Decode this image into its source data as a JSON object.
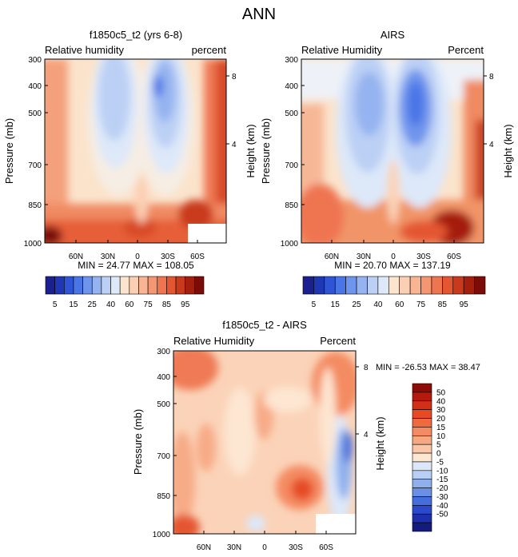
{
  "page_title": "ANN",
  "chart_data": [
    {
      "type": "heatmap",
      "title": "f1850c5_t2 (yrs 6-8)",
      "left_label": "Relative humidity",
      "right_label": "percent",
      "ylabel": "Pressure (mb)",
      "y2label": "Height (km)",
      "xticks": [
        "60N",
        "30N",
        "0",
        "30S",
        "60S"
      ],
      "yticks": [
        "300",
        "400",
        "500",
        "700",
        "850",
        "1000"
      ],
      "y2ticks": [
        "8",
        "4"
      ],
      "stats": "MIN =  24.77   MAX = 108.05",
      "colorbar": {
        "orientation": "horizontal",
        "labels": [
          "5",
          "15",
          "25",
          "40",
          "60",
          "75",
          "85",
          "95"
        ],
        "colors": [
          "#1b1f8f",
          "#2037b5",
          "#2f55d6",
          "#4a75e6",
          "#6f94ec",
          "#95b3f0",
          "#bcd0f5",
          "#dde8f9",
          "#fbe5cf",
          "#fbcfb3",
          "#f8b493",
          "#f49672",
          "#ef7551",
          "#e45631",
          "#c93a1c",
          "#a51f0f",
          "#7c0c07"
        ]
      },
      "zrange": [
        24.77,
        108.05
      ]
    },
    {
      "type": "heatmap",
      "title": "AIRS",
      "left_label": "Relative Humidity",
      "right_label": "Percent",
      "ylabel": "Pressure (mb)",
      "y2label": "Height (km)",
      "xticks": [
        "60N",
        "30N",
        "0",
        "30S",
        "60S"
      ],
      "yticks": [
        "300",
        "400",
        "500",
        "700",
        "850",
        "1000"
      ],
      "y2ticks": [
        "8",
        "4"
      ],
      "stats": "MIN =  20.70   MAX = 137.19",
      "colorbar": {
        "orientation": "horizontal",
        "labels": [
          "5",
          "15",
          "25",
          "40",
          "60",
          "75",
          "85",
          "95"
        ],
        "colors": [
          "#1b1f8f",
          "#2037b5",
          "#2f55d6",
          "#4a75e6",
          "#6f94ec",
          "#95b3f0",
          "#bcd0f5",
          "#dde8f9",
          "#fbe5cf",
          "#fbcfb3",
          "#f8b493",
          "#f49672",
          "#ef7551",
          "#e45631",
          "#c93a1c",
          "#a51f0f",
          "#7c0c07"
        ]
      },
      "zrange": [
        20.7,
        137.19
      ]
    },
    {
      "type": "heatmap",
      "title": "f1850c5_t2 - AIRS",
      "left_label": "Relative Humidity",
      "right_label": "Percent",
      "ylabel": "Pressure (mb)",
      "y2label": "Height (km)",
      "xticks": [
        "60N",
        "30N",
        "0",
        "30S",
        "60S"
      ],
      "yticks": [
        "300",
        "400",
        "500",
        "700",
        "850",
        "1000"
      ],
      "y2ticks": [
        "8",
        "4"
      ],
      "stats": "MIN = -26.53   MAX =  38.47",
      "colorbar": {
        "orientation": "vertical",
        "labels": [
          "50",
          "40",
          "30",
          "20",
          "15",
          "10",
          "5",
          "0",
          "-5",
          "-10",
          "-15",
          "-20",
          "-30",
          "-40",
          "-50"
        ],
        "colors": [
          "#8f0b06",
          "#b51a0d",
          "#d32e16",
          "#e64b25",
          "#ef6a3f",
          "#f48b62",
          "#f7a883",
          "#fac6a6",
          "#fde6d2",
          "#dce8fa",
          "#b8cff4",
          "#8fb0ed",
          "#6a90e6",
          "#466ddd",
          "#2b49cc",
          "#1d2faa",
          "#141b7c"
        ]
      },
      "zrange": [
        -26.53,
        38.47
      ]
    }
  ]
}
